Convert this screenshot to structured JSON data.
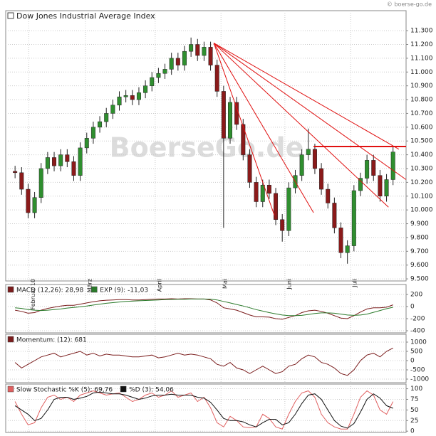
{
  "header": {
    "copyright": "© boerse-go.de",
    "watermark": "BoerseGo.de"
  },
  "chart_data": [
    {
      "type": "candlestick",
      "title": "Dow Jones Industrial Average Index",
      "up_color": "#2f8f2f",
      "down_color": "#8b1a1a",
      "grid": true,
      "xlim": [
        -1,
        60
      ],
      "ylim": [
        9485,
        11445
      ],
      "xticks": [
        {
          "value": 2.1,
          "label": "Februar 10"
        },
        {
          "value": 10.8,
          "label": "März"
        },
        {
          "value": 21.5,
          "label": "April"
        },
        {
          "value": 31.6,
          "label": "Mai"
        },
        {
          "value": 41.4,
          "label": "Juni"
        },
        {
          "value": 51.5,
          "label": "Juli"
        }
      ],
      "yticks": [
        {
          "value": 11300,
          "label": "11.300"
        },
        {
          "value": 11200,
          "label": "11.200"
        },
        {
          "value": 11100,
          "label": "11.100"
        },
        {
          "value": 11000,
          "label": "11.000"
        },
        {
          "value": 10900,
          "label": "10.900"
        },
        {
          "value": 10800,
          "label": "10.800"
        },
        {
          "value": 10700,
          "label": "10.700"
        },
        {
          "value": 10600,
          "label": "10.600"
        },
        {
          "value": 10500,
          "label": "10.500"
        },
        {
          "value": 10400,
          "label": "10.400"
        },
        {
          "value": 10300,
          "label": "10.300"
        },
        {
          "value": 10200,
          "label": "10.200"
        },
        {
          "value": 10100,
          "label": "10.100"
        },
        {
          "value": 10000,
          "label": "10.000"
        },
        {
          "value": 9900,
          "label": "9.900"
        },
        {
          "value": 9800,
          "label": "9.800"
        },
        {
          "value": 9700,
          "label": "9.700"
        },
        {
          "value": 9600,
          "label": "9.600"
        },
        {
          "value": 9500,
          "label": "9.500"
        }
      ],
      "open": [
        10280,
        10270,
        10150,
        9980,
        10090,
        10300,
        10380,
        10320,
        10400,
        10350,
        10250,
        10450,
        10520,
        10600,
        10640,
        10700,
        10760,
        10820,
        10830,
        10800,
        10850,
        10900,
        10960,
        10990,
        11020,
        11100,
        11050,
        11150,
        11200,
        11120,
        11180,
        11050,
        10860,
        10520,
        10780,
        10620,
        10400,
        10200,
        10060,
        10180,
        10120,
        9930,
        9850,
        10160,
        10250,
        10400,
        10440,
        10300,
        10150,
        10050,
        9870,
        9690,
        9740,
        10140,
        10230,
        10360,
        10250,
        10100,
        10220
      ],
      "high": [
        10320,
        10310,
        10190,
        10130,
        10340,
        10420,
        10420,
        10440,
        10440,
        10390,
        10490,
        10560,
        10640,
        10680,
        10740,
        10800,
        10860,
        10870,
        10870,
        10890,
        10940,
        11000,
        11030,
        11060,
        11140,
        11140,
        11190,
        11250,
        11240,
        11220,
        11220,
        11090,
        10900,
        10820,
        10820,
        10660,
        10440,
        10240,
        10220,
        10220,
        10160,
        9970,
        10200,
        10290,
        10440,
        10590,
        10480,
        10340,
        10190,
        10090,
        9910,
        9780,
        10180,
        10270,
        10400,
        10400,
        10290,
        10260,
        10460
      ],
      "low": [
        10230,
        10110,
        9940,
        9940,
        10050,
        10260,
        10280,
        10280,
        10310,
        10210,
        10210,
        10410,
        10480,
        10560,
        10600,
        10660,
        10720,
        10780,
        10760,
        10760,
        10810,
        10860,
        10920,
        10950,
        10980,
        11010,
        11010,
        11110,
        11080,
        11080,
        11010,
        10820,
        9870,
        10480,
        10580,
        10360,
        10160,
        10020,
        10020,
        10080,
        9890,
        9770,
        9810,
        10120,
        10210,
        10360,
        10260,
        10110,
        10010,
        9830,
        9650,
        9610,
        9700,
        10100,
        10190,
        10210,
        10060,
        10060,
        10180
      ],
      "close": [
        10270,
        10150,
        9980,
        10090,
        10300,
        10380,
        10320,
        10400,
        10350,
        10250,
        10450,
        10520,
        10600,
        10640,
        10700,
        10760,
        10820,
        10830,
        10800,
        10850,
        10900,
        10960,
        10990,
        11020,
        11100,
        11050,
        11150,
        11200,
        11120,
        11180,
        11050,
        10860,
        10520,
        10780,
        10620,
        10400,
        10200,
        10060,
        10180,
        10120,
        9930,
        9850,
        10160,
        10250,
        10400,
        10440,
        10300,
        10150,
        10050,
        9870,
        9690,
        9740,
        10140,
        10230,
        10360,
        10250,
        10100,
        10220,
        10420
      ],
      "trendline_color": "#e01010",
      "trendlines": [
        {
          "x": [
            30.5,
            45.8
          ],
          "y": [
            11210,
            9980
          ]
        },
        {
          "x": [
            30.5,
            39.8
          ],
          "y": [
            11210,
            9960
          ]
        },
        {
          "x": [
            30.5,
            57.3
          ],
          "y": [
            11210,
            10020
          ]
        },
        {
          "x": [
            30.5,
            60
          ],
          "y": [
            11210,
            10220
          ]
        },
        {
          "x": [
            30.5,
            58.9
          ],
          "y": [
            11210,
            10440
          ]
        },
        {
          "x": [
            45.8,
            60
          ],
          "y": [
            10460,
            10460
          ]
        }
      ]
    },
    {
      "type": "line",
      "xlim": [
        -1,
        60
      ],
      "ylim": [
        -435,
        365
      ],
      "grid": true,
      "yticks": [
        200,
        0,
        -200,
        -400
      ],
      "series": [
        {
          "name": "MACD (12,26): 28,98",
          "color": "#7a1c1c",
          "values": [
            -60,
            -80,
            -110,
            -100,
            -60,
            -30,
            -10,
            10,
            20,
            20,
            40,
            60,
            80,
            95,
            105,
            110,
            115,
            115,
            110,
            110,
            115,
            120,
            125,
            125,
            130,
            125,
            130,
            130,
            125,
            125,
            110,
            60,
            -20,
            -40,
            -60,
            -100,
            -140,
            -170,
            -170,
            -175,
            -200,
            -210,
            -180,
            -150,
            -100,
            -70,
            -60,
            -80,
            -110,
            -150,
            -190,
            -200,
            -150,
            -90,
            -40,
            -20,
            -20,
            -10,
            28.98
          ]
        },
        {
          "name": "EXP (9): -11,03",
          "color": "#2a7a2a",
          "values": [
            -20,
            -30,
            -50,
            -60,
            -65,
            -60,
            -50,
            -40,
            -25,
            -15,
            -5,
            10,
            25,
            40,
            55,
            65,
            75,
            85,
            90,
            95,
            100,
            105,
            110,
            115,
            118,
            120,
            122,
            125,
            125,
            125,
            123,
            110,
            85,
            60,
            35,
            10,
            -20,
            -50,
            -75,
            -100,
            -120,
            -140,
            -150,
            -150,
            -145,
            -130,
            -115,
            -105,
            -105,
            -110,
            -125,
            -140,
            -145,
            -140,
            -125,
            -95,
            -65,
            -35,
            -11.03
          ]
        }
      ]
    },
    {
      "type": "line",
      "xlim": [
        -1,
        60
      ],
      "ylim": [
        -1192,
        1423
      ],
      "grid": true,
      "yticks": [
        1000,
        500,
        0,
        -500,
        -1000
      ],
      "series": [
        {
          "name": "Momentum: (12): 681",
          "color": "#7a1c1c",
          "values": [
            -100,
            -400,
            -200,
            0,
            200,
            300,
            400,
            200,
            300,
            400,
            500,
            300,
            400,
            250,
            350,
            300,
            300,
            250,
            200,
            200,
            250,
            300,
            150,
            200,
            300,
            400,
            300,
            350,
            300,
            200,
            100,
            -200,
            -300,
            -100,
            -400,
            -500,
            -700,
            -500,
            -300,
            -500,
            -700,
            -600,
            -300,
            -200,
            100,
            300,
            200,
            -100,
            -200,
            -400,
            -700,
            -800,
            -500,
            0,
            300,
            400,
            200,
            500,
            681
          ]
        }
      ]
    },
    {
      "type": "line",
      "xlim": [
        -1,
        60
      ],
      "ylim": [
        -3,
        111
      ],
      "grid": true,
      "yticks": [
        100,
        75,
        50,
        25,
        0
      ],
      "series": [
        {
          "name": "Slow Stochastic %K (5): 69,76",
          "color": "#e06060",
          "values": [
            70,
            40,
            15,
            20,
            55,
            80,
            85,
            75,
            80,
            70,
            85,
            90,
            95,
            90,
            85,
            88,
            90,
            80,
            70,
            75,
            85,
            90,
            80,
            85,
            95,
            80,
            85,
            90,
            70,
            80,
            55,
            20,
            10,
            35,
            25,
            10,
            8,
            10,
            40,
            30,
            10,
            5,
            40,
            70,
            90,
            95,
            80,
            40,
            20,
            10,
            5,
            5,
            40,
            80,
            95,
            85,
            50,
            40,
            69.76
          ]
        },
        {
          "name": "%D (3): 54,06",
          "color": "#111111",
          "values": [
            60,
            50,
            40,
            25,
            30,
            50,
            75,
            80,
            80,
            75,
            78,
            82,
            90,
            92,
            90,
            88,
            88,
            85,
            80,
            75,
            78,
            83,
            85,
            85,
            87,
            85,
            85,
            85,
            80,
            78,
            68,
            50,
            30,
            25,
            25,
            22,
            15,
            10,
            20,
            28,
            28,
            15,
            20,
            40,
            65,
            85,
            88,
            75,
            50,
            25,
            12,
            7,
            18,
            45,
            75,
            88,
            78,
            60,
            54.06
          ]
        }
      ]
    }
  ]
}
